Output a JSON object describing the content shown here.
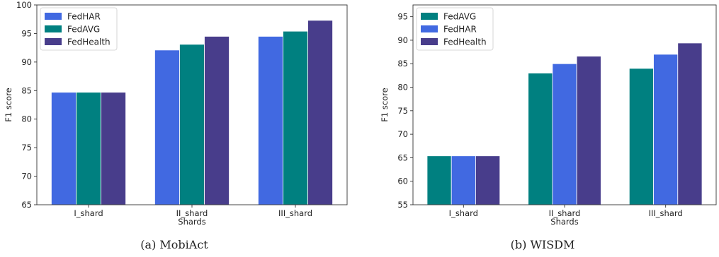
{
  "colors": {
    "FedHAR": "#4169E1",
    "FedAVG": "#008080",
    "FedHealth": "#483D8B"
  },
  "chart_data": [
    {
      "type": "bar",
      "caption": "(a) MobiAct",
      "xlabel": "Shards",
      "ylabel": "F1 score",
      "categories": [
        "I_shard",
        "II_shard",
        "III_shard"
      ],
      "ylim": [
        65,
        100
      ],
      "yticks": [
        65,
        70,
        75,
        80,
        85,
        90,
        95,
        100
      ],
      "legend_position": "top-left",
      "series": [
        {
          "name": "FedHAR",
          "values": [
            84.7,
            92.1,
            94.5
          ]
        },
        {
          "name": "FedAVG",
          "values": [
            84.7,
            93.1,
            95.4
          ]
        },
        {
          "name": "FedHealth",
          "values": [
            84.7,
            94.5,
            97.3
          ]
        }
      ]
    },
    {
      "type": "bar",
      "caption": "(b) WISDM",
      "xlabel": "Shards",
      "ylabel": "F1 score",
      "categories": [
        "I_shard",
        "II_shard",
        "III_shard"
      ],
      "ylim": [
        55,
        97.5
      ],
      "yticks": [
        55,
        60,
        65,
        70,
        75,
        80,
        85,
        90,
        95
      ],
      "legend_position": "top-left",
      "series": [
        {
          "name": "FedAVG",
          "values": [
            65.4,
            83.0,
            84.0
          ]
        },
        {
          "name": "FedHAR",
          "values": [
            65.4,
            85.0,
            87.0
          ]
        },
        {
          "name": "FedHealth",
          "values": [
            65.4,
            86.6,
            89.4
          ]
        }
      ]
    }
  ]
}
